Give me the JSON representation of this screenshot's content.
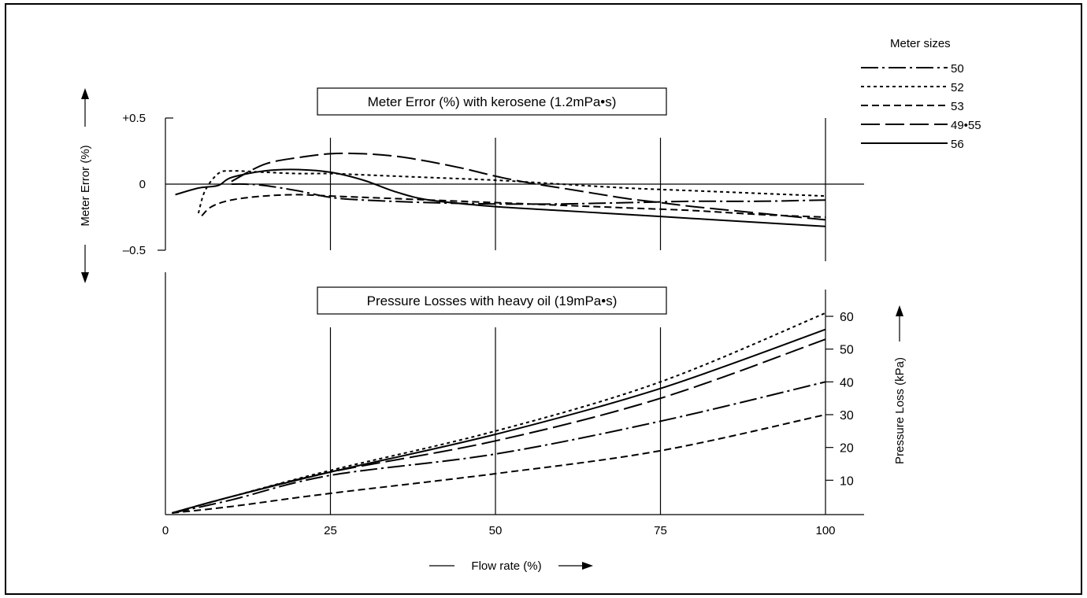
{
  "chart_data": [
    {
      "type": "line",
      "title": "Meter Error (%) with kerosene (1.2mPa•s)",
      "xlabel": "Flow rate (%)",
      "ylabel": "Meter Error (%)",
      "xlim": [
        0,
        100
      ],
      "ylim": [
        -0.5,
        0.5
      ],
      "y_ticks": [
        "+0.5",
        "0",
        "–0.5"
      ],
      "x_ticks": [
        "0",
        "25",
        "50",
        "75",
        "100"
      ],
      "grid": "vertical lines at 25, 50, 75, 100; zero line",
      "legend_title": "Meter sizes",
      "legend_position": "top-right",
      "series": [
        {
          "name": "50",
          "dash": "dash-dot",
          "x": [
            10,
            12,
            15,
            20,
            25,
            30,
            40,
            50,
            60,
            70,
            80,
            90,
            100
          ],
          "y": [
            0.0,
            0.0,
            -0.01,
            -0.05,
            -0.1,
            -0.12,
            -0.14,
            -0.15,
            -0.15,
            -0.14,
            -0.13,
            -0.13,
            -0.12
          ]
        },
        {
          "name": "52",
          "dash": "dotted",
          "x": [
            5,
            6,
            8,
            10,
            15,
            20,
            25,
            30,
            40,
            50,
            60,
            70,
            80,
            90,
            100
          ],
          "y": [
            -0.22,
            -0.05,
            0.08,
            0.1,
            0.09,
            0.08,
            0.08,
            0.07,
            0.05,
            0.03,
            0.0,
            -0.03,
            -0.05,
            -0.07,
            -0.09
          ]
        },
        {
          "name": "53",
          "dash": "short-dash",
          "x": [
            5.5,
            7,
            10,
            15,
            20,
            25,
            30,
            40,
            50,
            60,
            70,
            80,
            90,
            100
          ],
          "y": [
            -0.24,
            -0.17,
            -0.12,
            -0.09,
            -0.08,
            -0.09,
            -0.1,
            -0.12,
            -0.14,
            -0.16,
            -0.18,
            -0.2,
            -0.23,
            -0.25
          ]
        },
        {
          "name": "49•55",
          "dash": "long-dash",
          "x": [
            10,
            15,
            20,
            25,
            30,
            35,
            40,
            45,
            50,
            55,
            60,
            65,
            70,
            75,
            80,
            90,
            100
          ],
          "y": [
            0.02,
            0.15,
            0.2,
            0.23,
            0.23,
            0.21,
            0.17,
            0.12,
            0.06,
            0.01,
            -0.03,
            -0.07,
            -0.11,
            -0.14,
            -0.17,
            -0.22,
            -0.27
          ]
        },
        {
          "name": "56",
          "dash": "solid",
          "x": [
            1.5,
            5,
            8,
            10,
            15,
            20,
            25,
            30,
            35,
            40,
            50,
            60,
            70,
            80,
            90,
            100
          ],
          "y": [
            -0.08,
            -0.03,
            -0.01,
            0.05,
            0.1,
            0.11,
            0.09,
            0.03,
            -0.06,
            -0.12,
            -0.17,
            -0.2,
            -0.23,
            -0.26,
            -0.29,
            -0.32
          ]
        }
      ]
    },
    {
      "type": "line",
      "title": "Pressure Losses with heavy oil (19mPa•s)",
      "xlabel": "Flow rate (%)",
      "ylabel": "Pressure Loss (kPa)",
      "xlim": [
        0,
        100
      ],
      "ylim": [
        0,
        60
      ],
      "y_ticks": [
        "10",
        "20",
        "30",
        "40",
        "50",
        "60"
      ],
      "x_ticks": [
        "0",
        "25",
        "50",
        "75",
        "100"
      ],
      "grid": "vertical lines at 25, 50, 75",
      "series": [
        {
          "name": "50",
          "dash": "dash-dot",
          "x": [
            1,
            10,
            25,
            50,
            75,
            100
          ],
          "y": [
            0,
            4,
            11.5,
            18,
            28,
            40
          ]
        },
        {
          "name": "52",
          "dash": "dotted",
          "x": [
            1,
            10,
            25,
            50,
            75,
            100
          ],
          "y": [
            0,
            5,
            13,
            25,
            40,
            61
          ]
        },
        {
          "name": "53",
          "dash": "short-dash",
          "x": [
            1,
            10,
            25,
            50,
            75,
            100
          ],
          "y": [
            0,
            2,
            6,
            12,
            19,
            30
          ]
        },
        {
          "name": "49•55",
          "dash": "long-dash",
          "x": [
            1,
            10,
            25,
            50,
            75,
            100
          ],
          "y": [
            0,
            5,
            12.5,
            22,
            35,
            53
          ]
        },
        {
          "name": "56",
          "dash": "solid",
          "x": [
            1,
            10,
            25,
            50,
            75,
            100
          ],
          "y": [
            0,
            5,
            12.5,
            24,
            38,
            56
          ]
        }
      ]
    }
  ]
}
